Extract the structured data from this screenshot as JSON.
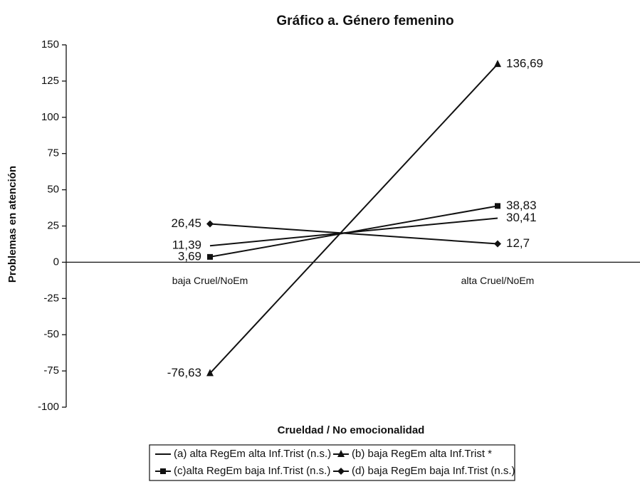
{
  "chart_data": {
    "type": "line",
    "title": "Gráfico a. Género femenino",
    "x_label": "Crueldad / No emocionalidad",
    "y_label": "Problemas en atención",
    "categories": [
      "baja Cruel/NoEm",
      "alta Cruel/NoEm"
    ],
    "ylim": [
      -100,
      150
    ],
    "yticks": [
      -100,
      -75,
      -50,
      -25,
      0,
      25,
      50,
      75,
      100,
      125,
      150
    ],
    "series": [
      {
        "name": "(a) alta RegEm alta Inf.Trist (n.s.)",
        "color": "#111111",
        "values": [
          11.39,
          30.41
        ],
        "value_labels": [
          "11,39",
          "30,41"
        ]
      },
      {
        "name": "(b) baja RegEm alta Inf.Trist *",
        "color": "#111111",
        "marker": "triangle",
        "values": [
          -76.63,
          136.69
        ],
        "value_labels": [
          "-76,63",
          "136,69"
        ]
      },
      {
        "name": "(c)alta RegEm baja Inf.Trist (n.s.)",
        "color": "#111111",
        "marker": "square",
        "values": [
          3.69,
          38.83
        ],
        "value_labels": [
          "3,69",
          "38,83"
        ]
      },
      {
        "name": "(d) baja RegEm baja Inf.Trist (n.s.)",
        "color": "#111111",
        "marker": "diamond",
        "values": [
          26.45,
          12.7
        ],
        "value_labels": [
          "26,45",
          "12,7"
        ]
      }
    ]
  }
}
